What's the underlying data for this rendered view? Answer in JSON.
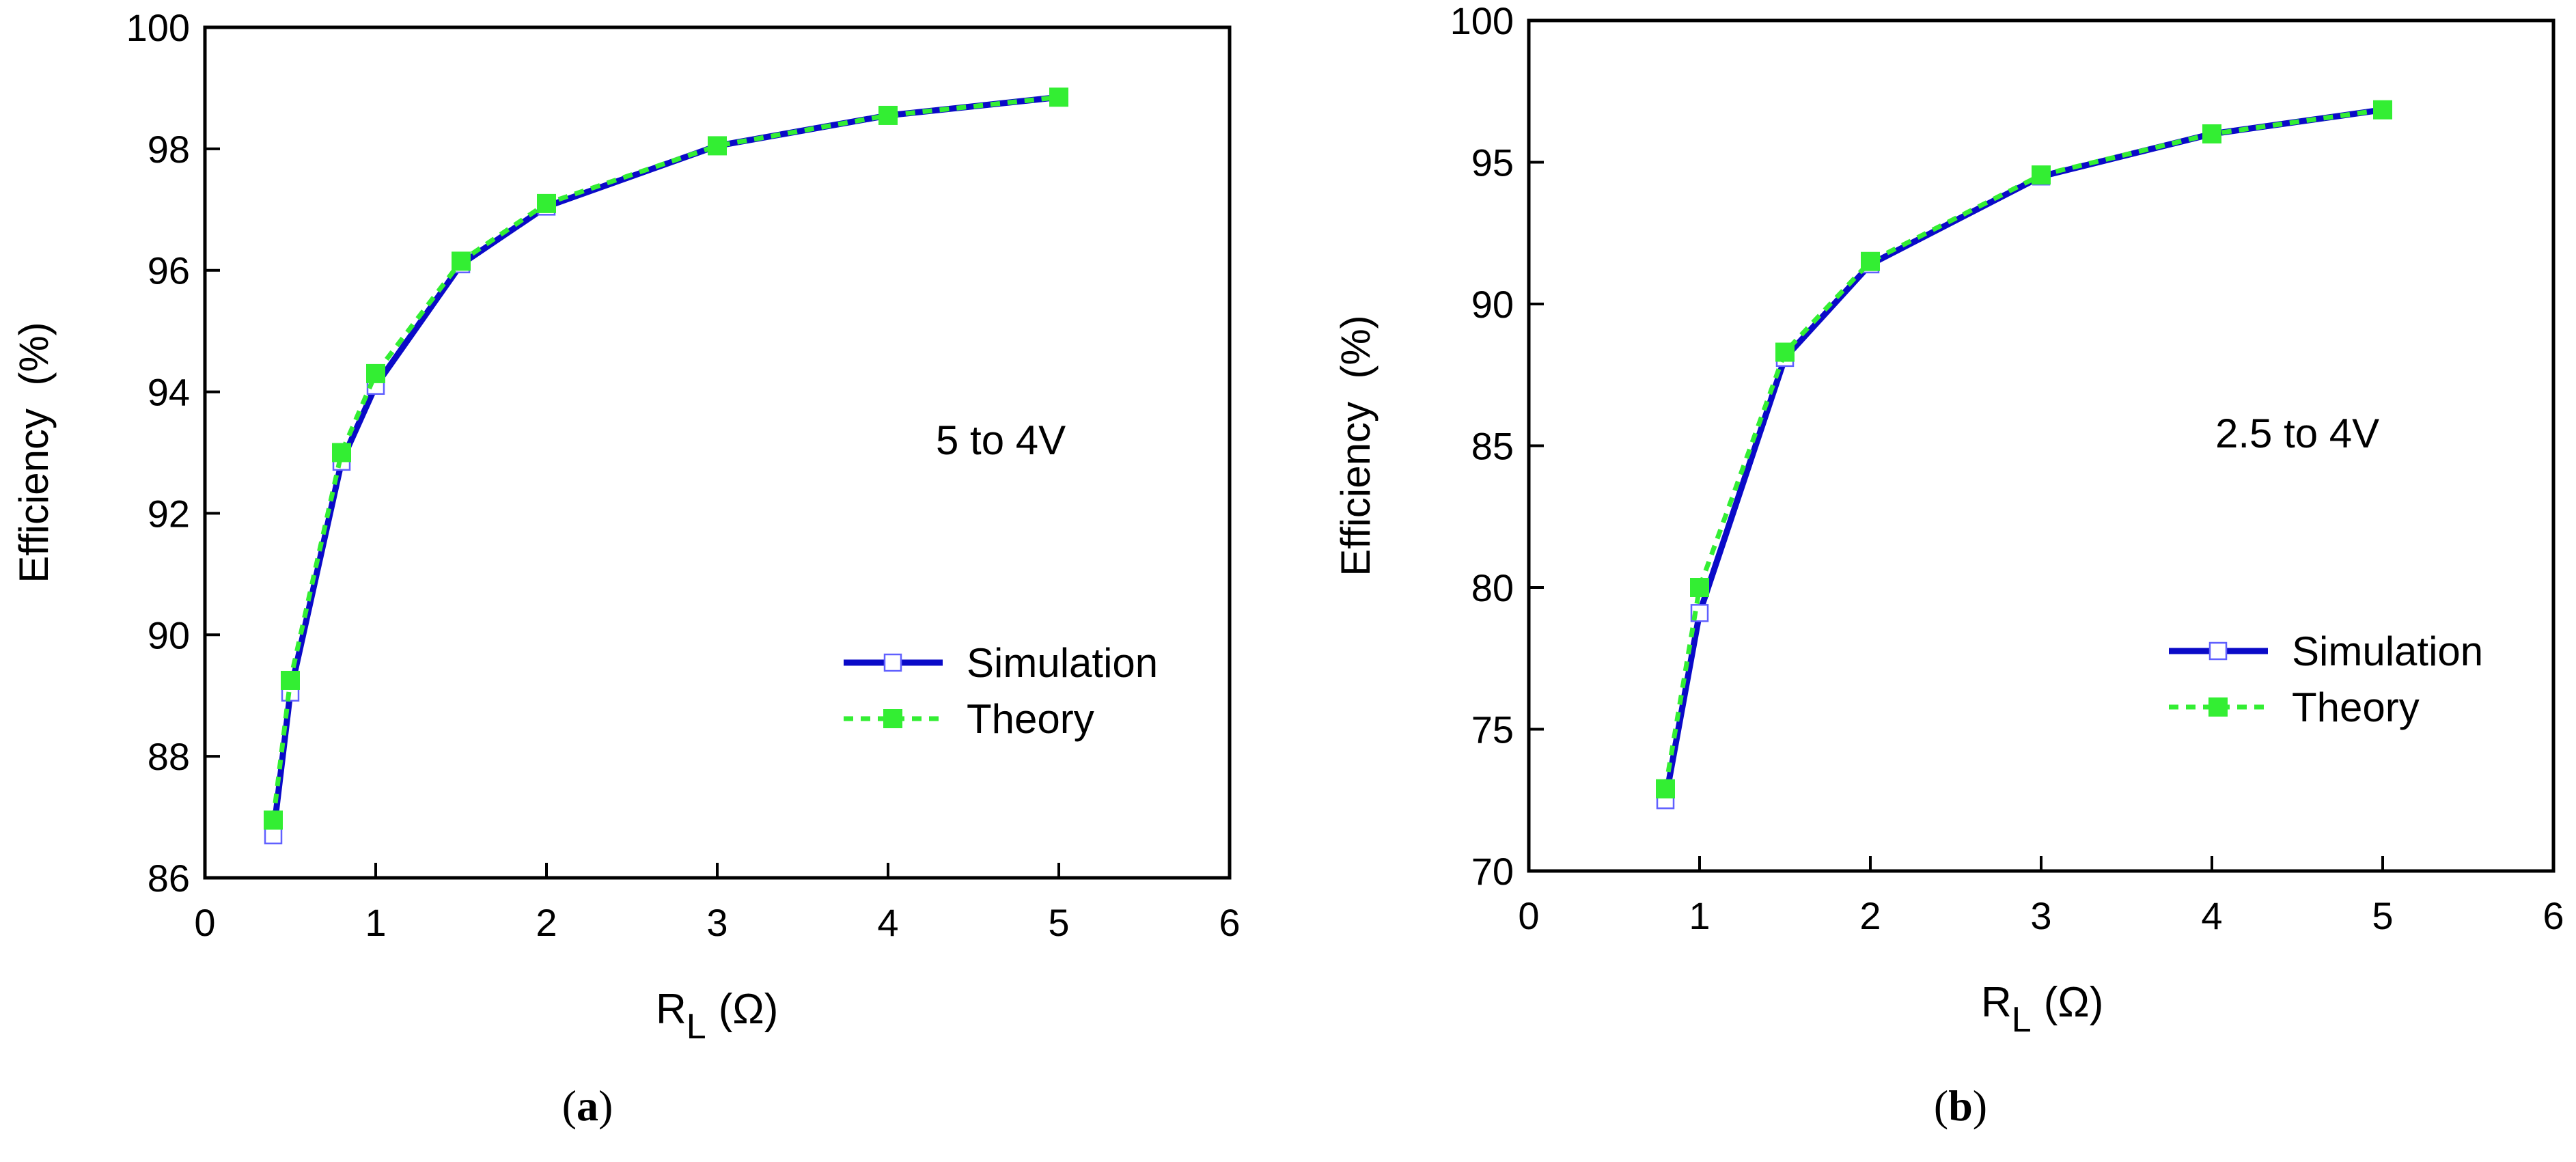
{
  "colors": {
    "simulation": "#0a0ac8",
    "theory": "#33ee33",
    "axis": "#000000"
  },
  "chart_data": [
    {
      "type": "line",
      "panel_label": "a",
      "annotation": "5 to 4V",
      "xlabel_main": "R",
      "xlabel_sub": "L",
      "xlabel_unit": "(Ω)",
      "ylabel": "Efficiency  (%)",
      "xlim": [
        0,
        6
      ],
      "ylim": [
        86,
        100
      ],
      "xticks": [
        "0",
        "1",
        "2",
        "3",
        "4",
        "5",
        "6"
      ],
      "yticks": [
        "86",
        "88",
        "90",
        "92",
        "94",
        "96",
        "98",
        "100"
      ],
      "legend_position": "lower-right",
      "series": [
        {
          "name": "Simulation",
          "x": [
            0.4,
            0.5,
            0.8,
            1.0,
            1.5,
            2.0,
            3.0,
            4.0,
            5.0
          ],
          "values": [
            86.7,
            89.05,
            92.85,
            94.1,
            96.1,
            97.05,
            98.05,
            98.55,
            98.85
          ]
        },
        {
          "name": "Theory",
          "x": [
            0.4,
            0.5,
            0.8,
            1.0,
            1.5,
            2.0,
            3.0,
            4.0,
            5.0
          ],
          "values": [
            86.95,
            89.25,
            93.0,
            94.3,
            96.15,
            97.1,
            98.05,
            98.55,
            98.85
          ]
        }
      ]
    },
    {
      "type": "line",
      "panel_label": "b",
      "annotation": "2.5 to 4V",
      "xlabel_main": "R",
      "xlabel_sub": "L",
      "xlabel_unit": "(Ω)",
      "ylabel": "Efficiency  (%)",
      "xlim": [
        0,
        6
      ],
      "ylim": [
        70,
        100
      ],
      "xticks": [
        "0",
        "1",
        "2",
        "3",
        "4",
        "5",
        "6"
      ],
      "yticks": [
        "70",
        "75",
        "80",
        "85",
        "90",
        "95",
        "100"
      ],
      "legend_position": "lower-right",
      "series": [
        {
          "name": "Simulation",
          "x": [
            0.8,
            1.0,
            1.5,
            2.0,
            3.0,
            4.0,
            5.0
          ],
          "values": [
            72.5,
            79.1,
            88.1,
            91.4,
            94.5,
            96.0,
            96.85
          ]
        },
        {
          "name": "Theory",
          "x": [
            0.8,
            1.0,
            1.5,
            2.0,
            3.0,
            4.0,
            5.0
          ],
          "values": [
            72.9,
            80.0,
            88.3,
            91.5,
            94.55,
            96.0,
            96.85
          ]
        }
      ]
    }
  ]
}
